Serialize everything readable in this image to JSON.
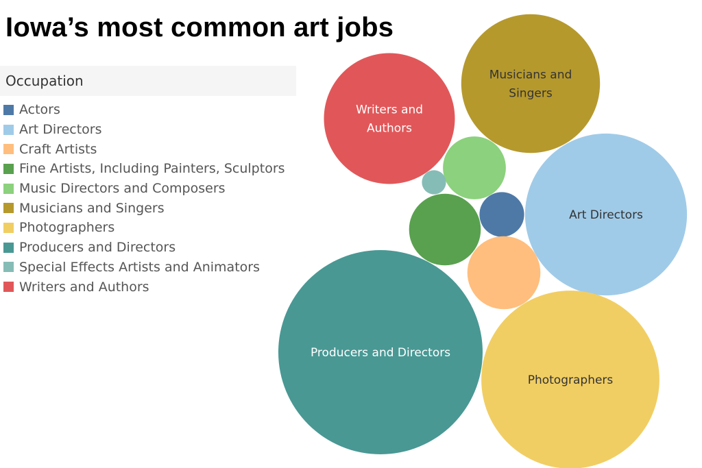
{
  "title": "Iowa’s most common art jobs",
  "legend": {
    "header": "Occupation"
  },
  "chart_data": {
    "type": "bubble",
    "title": "Iowa’s most common art jobs",
    "legend_placement": "left",
    "categories": [
      {
        "name": "Actors",
        "color": "#4e79a7",
        "label": []
      },
      {
        "name": "Art Directors",
        "color": "#a0cbe8",
        "label": [
          "Art Directors"
        ]
      },
      {
        "name": "Craft Artists",
        "color": "#ffbe7d",
        "label": []
      },
      {
        "name": "Fine Artists, Including Painters, Sculptors",
        "color": "#59a14f",
        "label": []
      },
      {
        "name": "Music Directors and Composers",
        "color": "#8cd17d",
        "label": []
      },
      {
        "name": "Musicians and Singers",
        "color": "#b6992d",
        "label": [
          "Musicians and",
          "Singers"
        ]
      },
      {
        "name": "Photographers",
        "color": "#f1ce63",
        "label": [
          "Photographers"
        ]
      },
      {
        "name": "Producers and Directors",
        "color": "#499894",
        "label": [
          "Producers and Directors"
        ]
      },
      {
        "name": "Special Effects Artists and Animators",
        "color": "#86bcb6",
        "label": []
      },
      {
        "name": "Writers and Authors",
        "color": "#e15759",
        "label": [
          "Writers and",
          "Authors"
        ]
      }
    ],
    "relative_size": {
      "Actors": 0.048,
      "Art Directors": 0.628,
      "Craft Artists": 0.128,
      "Fine Artists, Including Painters, Sculptors": 0.123,
      "Music Directors and Composers": 0.095,
      "Musicians and Singers": 0.461,
      "Photographers": 0.76,
      "Producers and Directors": 1.0,
      "Special Effects Artists and Animators": 0.014,
      "Writers and Authors": 0.411
    }
  }
}
